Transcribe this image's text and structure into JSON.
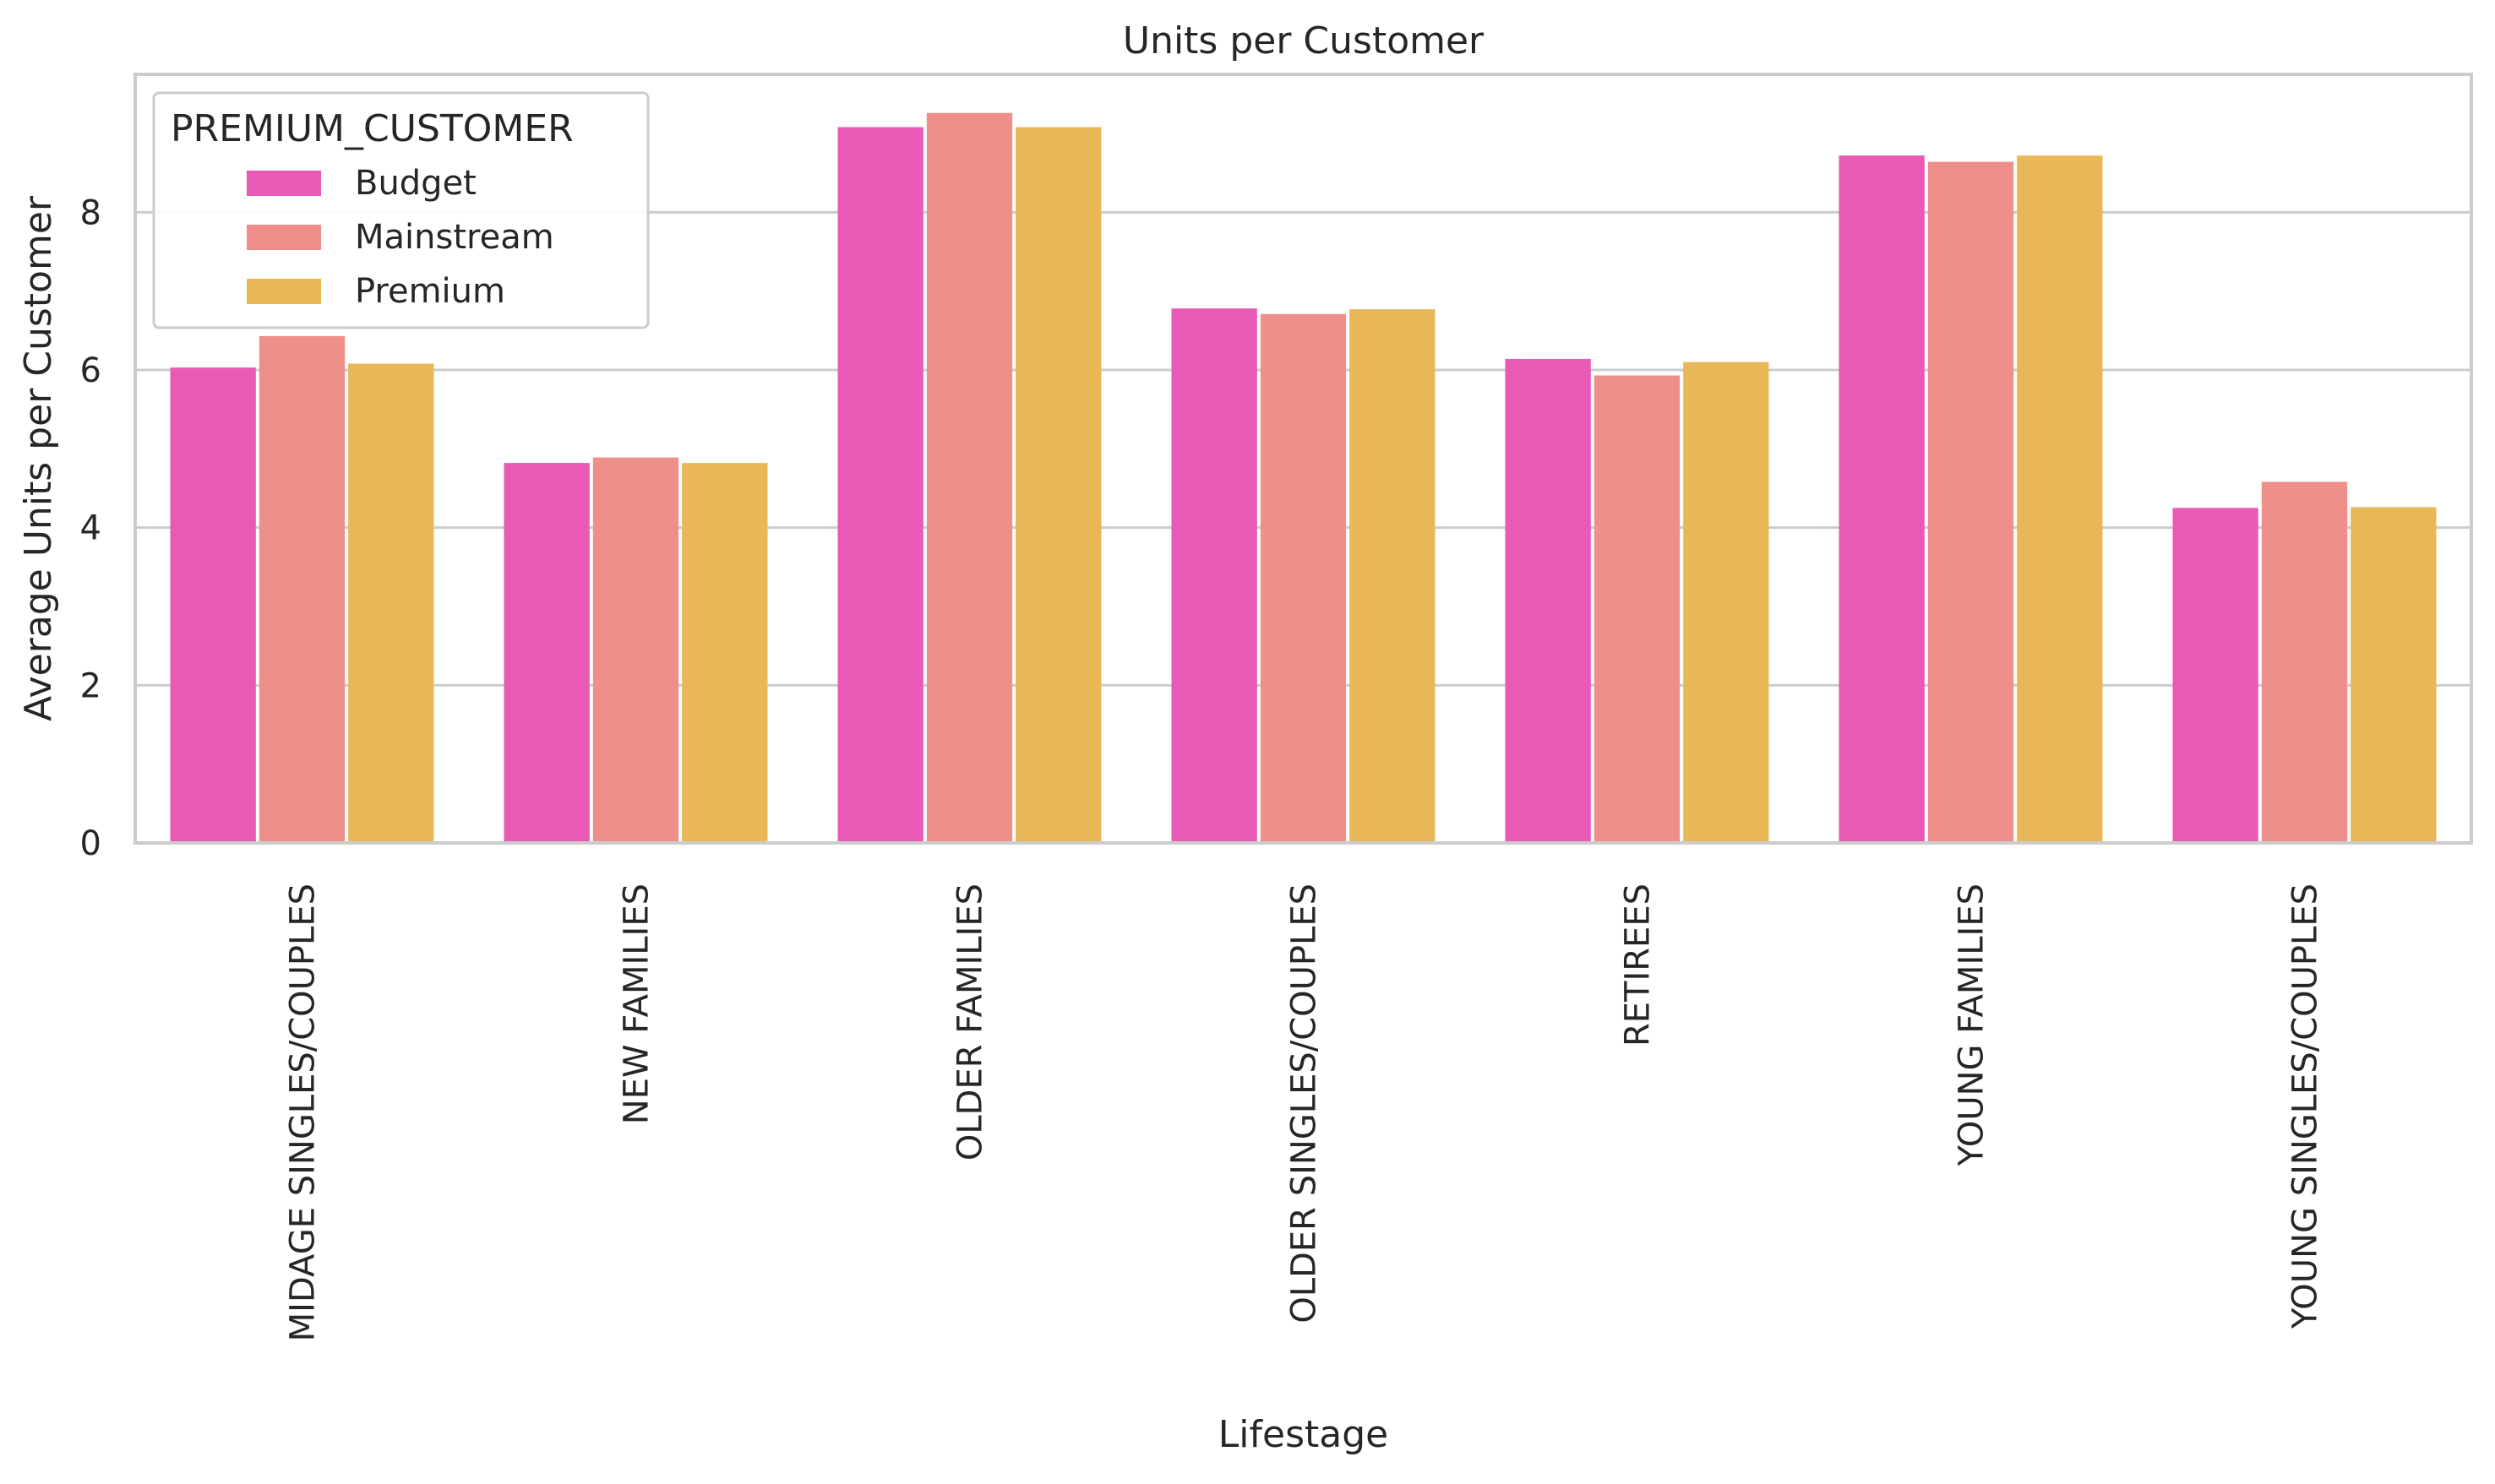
{
  "chart_data": {
    "type": "bar",
    "title": "Units per Customer",
    "xlabel": "Lifestage",
    "ylabel": "Average Units per Customer",
    "ylim": [
      0,
      9.75
    ],
    "yticks": [
      0,
      2,
      4,
      6,
      8
    ],
    "grid": true,
    "legend": {
      "title": "PREMIUM_CUSTOMER",
      "position": "top-left"
    },
    "categories": [
      "MIDAGE SINGLES/COUPLES",
      "NEW FAMILIES",
      "OLDER FAMILIES",
      "OLDER SINGLES/COUPLES",
      "RETIREES",
      "YOUNG FAMILIES",
      "YOUNG SINGLES/COUPLES"
    ],
    "series": [
      {
        "name": "Budget",
        "color": "#e85ab5",
        "values": [
          6.03,
          4.82,
          9.08,
          6.78,
          6.14,
          8.72,
          4.25
        ]
      },
      {
        "name": "Mainstream",
        "color": "#ef8f8a",
        "values": [
          6.43,
          4.89,
          9.26,
          6.71,
          5.93,
          8.64,
          4.58
        ]
      },
      {
        "name": "Premium",
        "color": "#e8b757",
        "values": [
          6.08,
          4.82,
          9.08,
          6.77,
          6.1,
          8.72,
          4.26
        ]
      }
    ]
  }
}
